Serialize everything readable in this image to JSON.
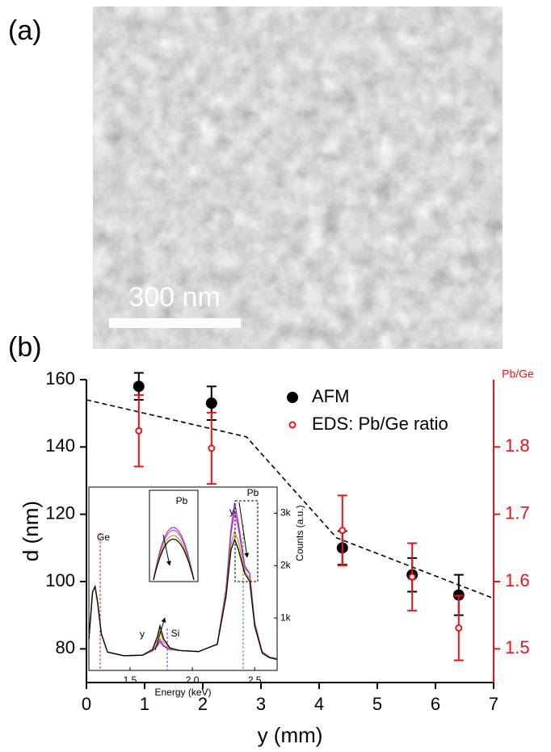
{
  "panel_a": {
    "label": "(a)",
    "scale_bar": "300 nm"
  },
  "panel_b_label": "(b)",
  "chart_data": [
    {
      "type": "scatter",
      "xlabel": "y (mm)",
      "ylabel": "d (nm)",
      "y2label": "Pb/Ge",
      "xlim": [
        0,
        7
      ],
      "xticks": [
        0,
        1,
        2,
        3,
        4,
        5,
        6,
        7
      ],
      "ylim": [
        70,
        160
      ],
      "yticks": [
        80,
        100,
        120,
        140,
        160
      ],
      "y2lim": [
        1.45,
        1.9
      ],
      "y2ticks": [
        1.5,
        1.6,
        1.7,
        1.8
      ],
      "y2color": "#e8141b",
      "legend": "upper right",
      "series": [
        {
          "name": "AFM",
          "color": "#000000",
          "marker": "filled",
          "x": [
            0.9,
            2.15,
            4.4,
            5.6,
            6.4
          ],
          "values": [
            158,
            153,
            110,
            102,
            96
          ],
          "errors": [
            4,
            5,
            5,
            5,
            6
          ]
        },
        {
          "name": "EDS: Pb/Ge ratio",
          "color": "#e8141b",
          "marker": "open",
          "axis": "y2",
          "x": [
            0.9,
            2.15,
            4.4,
            5.6,
            6.4
          ],
          "values": [
            1.824,
            1.798,
            1.676,
            1.607,
            1.531
          ],
          "errors": [
            0.053,
            0.053,
            0.052,
            0.05,
            0.048
          ]
        }
      ],
      "dashed_line": {
        "color": "#000000",
        "x": [
          0,
          2.75,
          4.3,
          7
        ],
        "values": [
          154,
          143,
          113,
          95
        ]
      }
    },
    {
      "type": "line",
      "xlabel": "Energy (keV)",
      "y2label": "Counts (a.u.)",
      "xlim": [
        1.17,
        2.68
      ],
      "xticks": [
        1.5,
        {
          "value": 2,
          "label": "2.0"
        },
        2.5
      ],
      "y2lim": [
        0,
        3500
      ],
      "y2ticks": [
        {
          "value": 1000,
          "label": "1k"
        },
        {
          "value": 2000,
          "label": "2k"
        },
        {
          "value": 3000,
          "label": "3k"
        }
      ],
      "x": [
        1.17,
        1.2,
        1.22,
        1.24,
        1.27,
        1.32,
        1.45,
        1.6,
        1.68,
        1.72,
        1.74,
        1.77,
        1.82,
        1.9,
        2.05,
        2.2,
        2.27,
        2.31,
        2.34,
        2.37,
        2.42,
        2.46,
        2.5,
        2.56,
        2.62,
        2.68
      ],
      "series": [
        {
          "color": "#d040d0",
          "axis": "y2",
          "values": [
            600,
            1500,
            1600,
            1300,
            700,
            350,
            280,
            290,
            380,
            500,
            600,
            480,
            400,
            380,
            360,
            500,
            1500,
            2600,
            3050,
            2700,
            1950,
            1850,
            900,
            350,
            250,
            220
          ]
        },
        {
          "color": "#9b30d0",
          "axis": "y2",
          "values": [
            600,
            1500,
            1600,
            1300,
            700,
            350,
            280,
            290,
            370,
            470,
            550,
            460,
            400,
            380,
            360,
            500,
            1550,
            2700,
            3200,
            2800,
            2000,
            1850,
            920,
            360,
            255,
            225
          ]
        },
        {
          "color": "#b8a800",
          "axis": "y2",
          "values": [
            600,
            1500,
            1600,
            1300,
            700,
            350,
            280,
            290,
            390,
            580,
            750,
            550,
            420,
            380,
            360,
            500,
            1450,
            2400,
            2650,
            2450,
            1900,
            1750,
            870,
            340,
            245,
            215
          ]
        },
        {
          "color": "#000000",
          "axis": "y2",
          "values": [
            600,
            1500,
            1600,
            1300,
            700,
            350,
            280,
            290,
            400,
            650,
            850,
            600,
            430,
            380,
            360,
            500,
            1400,
            2300,
            2500,
            2300,
            1850,
            1700,
            850,
            330,
            240,
            210
          ]
        }
      ],
      "annotations": [
        "Ge",
        "Si",
        "Pb",
        "Pb",
        "y",
        "y"
      ]
    }
  ]
}
